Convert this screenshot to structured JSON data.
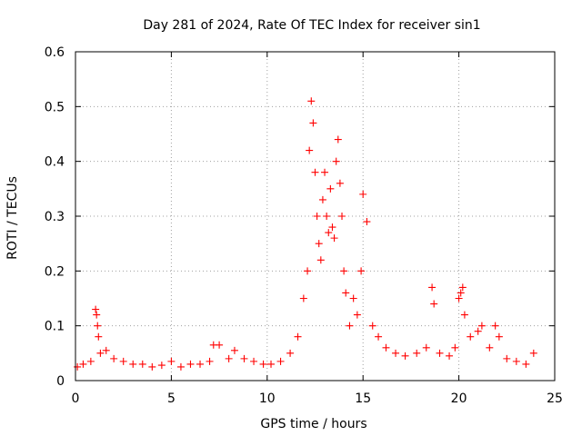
{
  "chart_data": {
    "type": "scatter",
    "title": "Day 281 of 2024, Rate Of TEC Index for receiver sin1",
    "xlabel": "GPS time / hours",
    "ylabel": "ROTI / TECUs",
    "xlim": [
      0,
      25
    ],
    "ylim": [
      0,
      0.6
    ],
    "xticks": [
      0,
      5,
      10,
      15,
      20,
      25
    ],
    "yticks": [
      0,
      0.1,
      0.2,
      0.3,
      0.4,
      0.5,
      0.6
    ],
    "xtick_labels": [
      "0",
      "5",
      "10",
      "15",
      "20",
      "25"
    ],
    "ytick_labels": [
      "0",
      "0.1",
      "0.2",
      "0.3",
      "0.4",
      "0.5",
      "0.6"
    ],
    "grid": true,
    "marker": "+",
    "color": "#ff0000",
    "series": [
      {
        "name": "sin1",
        "x": [
          0.1,
          0.4,
          0.8,
          1.05,
          1.1,
          1.15,
          1.2,
          1.3,
          1.6,
          2.0,
          2.5,
          3.0,
          3.5,
          4.0,
          4.5,
          5.0,
          5.5,
          6.0,
          6.5,
          7.0,
          7.2,
          7.5,
          8.0,
          8.3,
          8.8,
          9.3,
          9.8,
          10.2,
          10.7,
          11.2,
          11.6,
          11.9,
          12.1,
          12.2,
          12.3,
          12.4,
          12.5,
          12.6,
          12.7,
          12.8,
          12.9,
          13.0,
          13.1,
          13.2,
          13.3,
          13.4,
          13.5,
          13.6,
          13.7,
          13.8,
          13.9,
          14.0,
          14.1,
          14.3,
          14.5,
          14.7,
          14.9,
          15.0,
          15.2,
          15.5,
          15.8,
          16.2,
          16.7,
          17.2,
          17.8,
          18.3,
          18.6,
          18.7,
          19.0,
          19.5,
          19.8,
          20.0,
          20.1,
          20.2,
          20.3,
          20.6,
          21.0,
          21.2,
          21.6,
          21.9,
          22.1,
          22.5,
          23.0,
          23.5,
          23.9
        ],
        "y": [
          0.025,
          0.03,
          0.035,
          0.13,
          0.12,
          0.1,
          0.08,
          0.05,
          0.055,
          0.04,
          0.035,
          0.03,
          0.03,
          0.025,
          0.028,
          0.035,
          0.025,
          0.03,
          0.03,
          0.035,
          0.065,
          0.065,
          0.04,
          0.055,
          0.04,
          0.035,
          0.03,
          0.03,
          0.035,
          0.05,
          0.08,
          0.15,
          0.2,
          0.42,
          0.51,
          0.47,
          0.38,
          0.3,
          0.25,
          0.22,
          0.33,
          0.38,
          0.3,
          0.27,
          0.35,
          0.28,
          0.26,
          0.4,
          0.44,
          0.36,
          0.3,
          0.2,
          0.16,
          0.1,
          0.15,
          0.12,
          0.2,
          0.34,
          0.29,
          0.1,
          0.08,
          0.06,
          0.05,
          0.045,
          0.05,
          0.06,
          0.17,
          0.14,
          0.05,
          0.045,
          0.06,
          0.15,
          0.16,
          0.17,
          0.12,
          0.08,
          0.09,
          0.1,
          0.06,
          0.1,
          0.08,
          0.04,
          0.035,
          0.03,
          0.05
        ]
      }
    ]
  }
}
